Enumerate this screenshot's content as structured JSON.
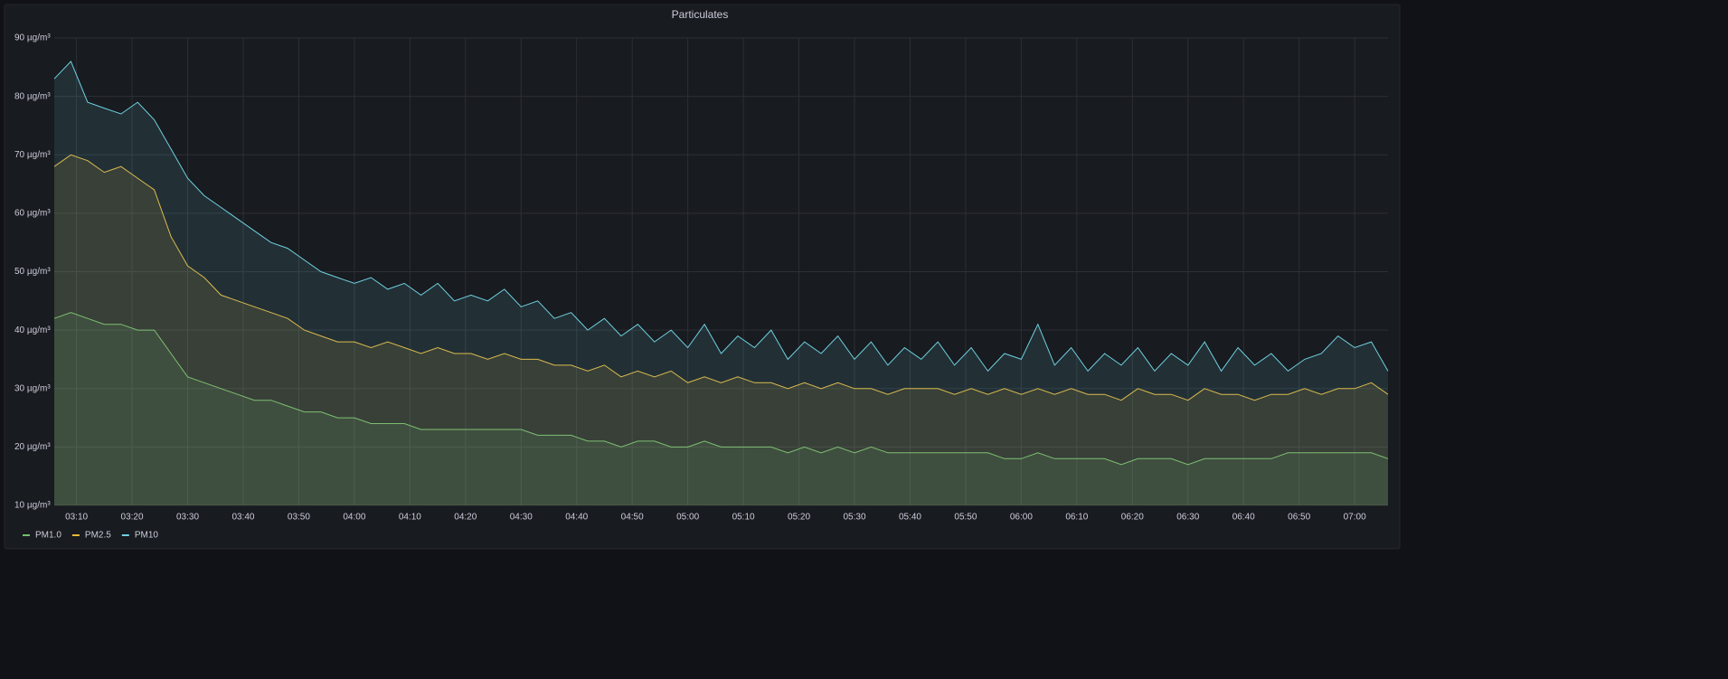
{
  "chart_data": {
    "type": "line",
    "title": "Particulates",
    "x": [
      "03:06",
      "03:09",
      "03:12",
      "03:15",
      "03:18",
      "03:21",
      "03:24",
      "03:27",
      "03:30",
      "03:33",
      "03:36",
      "03:39",
      "03:42",
      "03:45",
      "03:48",
      "03:51",
      "03:54",
      "03:57",
      "04:00",
      "04:03",
      "04:06",
      "04:09",
      "04:12",
      "04:15",
      "04:18",
      "04:21",
      "04:24",
      "04:27",
      "04:30",
      "04:33",
      "04:36",
      "04:39",
      "04:42",
      "04:45",
      "04:48",
      "04:51",
      "04:54",
      "04:57",
      "05:00",
      "05:03",
      "05:06",
      "05:09",
      "05:12",
      "05:15",
      "05:18",
      "05:21",
      "05:24",
      "05:27",
      "05:30",
      "05:33",
      "05:36",
      "05:39",
      "05:42",
      "05:45",
      "05:48",
      "05:51",
      "05:54",
      "05:57",
      "06:00",
      "06:03",
      "06:06",
      "06:09",
      "06:12",
      "06:15",
      "06:18",
      "06:21",
      "06:24",
      "06:27",
      "06:30",
      "06:33",
      "06:36",
      "06:39",
      "06:42",
      "06:45",
      "06:48",
      "06:51",
      "06:54",
      "06:57",
      "07:00",
      "07:03",
      "07:06"
    ],
    "series": [
      {
        "name": "PM1.0",
        "color": "#73bf69",
        "values": [
          42,
          43,
          42,
          41,
          41,
          40,
          40,
          36,
          32,
          31,
          30,
          29,
          28,
          28,
          27,
          26,
          26,
          25,
          25,
          24,
          24,
          24,
          23,
          23,
          23,
          23,
          23,
          23,
          23,
          22,
          22,
          22,
          21,
          21,
          20,
          21,
          21,
          20,
          20,
          21,
          20,
          20,
          20,
          20,
          19,
          20,
          19,
          20,
          19,
          20,
          19,
          19,
          19,
          19,
          19,
          19,
          19,
          18,
          18,
          19,
          18,
          18,
          18,
          18,
          17,
          18,
          18,
          18,
          17,
          18,
          18,
          18,
          18,
          18,
          19,
          19,
          19,
          19,
          19,
          19,
          18
        ]
      },
      {
        "name": "PM2.5",
        "color": "#eab839",
        "values": [
          68,
          70,
          69,
          67,
          68,
          66,
          64,
          56,
          51,
          49,
          46,
          45,
          44,
          43,
          42,
          40,
          39,
          38,
          38,
          37,
          38,
          37,
          36,
          37,
          36,
          36,
          35,
          36,
          35,
          35,
          34,
          34,
          33,
          34,
          32,
          33,
          32,
          33,
          31,
          32,
          31,
          32,
          31,
          31,
          30,
          31,
          30,
          31,
          30,
          30,
          29,
          30,
          30,
          30,
          29,
          30,
          29,
          30,
          29,
          30,
          29,
          30,
          29,
          29,
          28,
          30,
          29,
          29,
          28,
          30,
          29,
          29,
          28,
          29,
          29,
          30,
          29,
          30,
          30,
          31,
          29
        ]
      },
      {
        "name": "PM10",
        "color": "#6ed0e0",
        "values": [
          83,
          86,
          79,
          78,
          77,
          79,
          76,
          71,
          66,
          63,
          61,
          59,
          57,
          55,
          54,
          52,
          50,
          49,
          48,
          49,
          47,
          48,
          46,
          48,
          45,
          46,
          45,
          47,
          44,
          45,
          42,
          43,
          40,
          42,
          39,
          41,
          38,
          40,
          37,
          41,
          36,
          39,
          37,
          40,
          35,
          38,
          36,
          39,
          35,
          38,
          34,
          37,
          35,
          38,
          34,
          37,
          33,
          36,
          35,
          41,
          34,
          37,
          33,
          36,
          34,
          37,
          33,
          36,
          34,
          38,
          33,
          37,
          34,
          36,
          33,
          35,
          36,
          39,
          37,
          38,
          33
        ]
      }
    ],
    "xlim": [
      "03:06",
      "07:06"
    ],
    "xticks": [
      "03:10",
      "03:20",
      "03:30",
      "03:40",
      "03:50",
      "04:00",
      "04:10",
      "04:20",
      "04:30",
      "04:40",
      "04:50",
      "05:00",
      "05:10",
      "05:20",
      "05:30",
      "05:40",
      "05:50",
      "06:00",
      "06:10",
      "06:20",
      "06:30",
      "06:40",
      "06:50",
      "07:00"
    ],
    "ylim": [
      10,
      90
    ],
    "yticks": [
      {
        "value": 10,
        "label": "10 µg/m³"
      },
      {
        "value": 20,
        "label": "20 µg/m³"
      },
      {
        "value": 30,
        "label": "30 µg/m³"
      },
      {
        "value": 40,
        "label": "40 µg/m³"
      },
      {
        "value": 50,
        "label": "50 µg/m³"
      },
      {
        "value": 60,
        "label": "60 µg/m³"
      },
      {
        "value": 70,
        "label": "70 µg/m³"
      },
      {
        "value": 80,
        "label": "80 µg/m³"
      },
      {
        "value": 90,
        "label": "90 µg/m³"
      }
    ],
    "grid": true
  }
}
